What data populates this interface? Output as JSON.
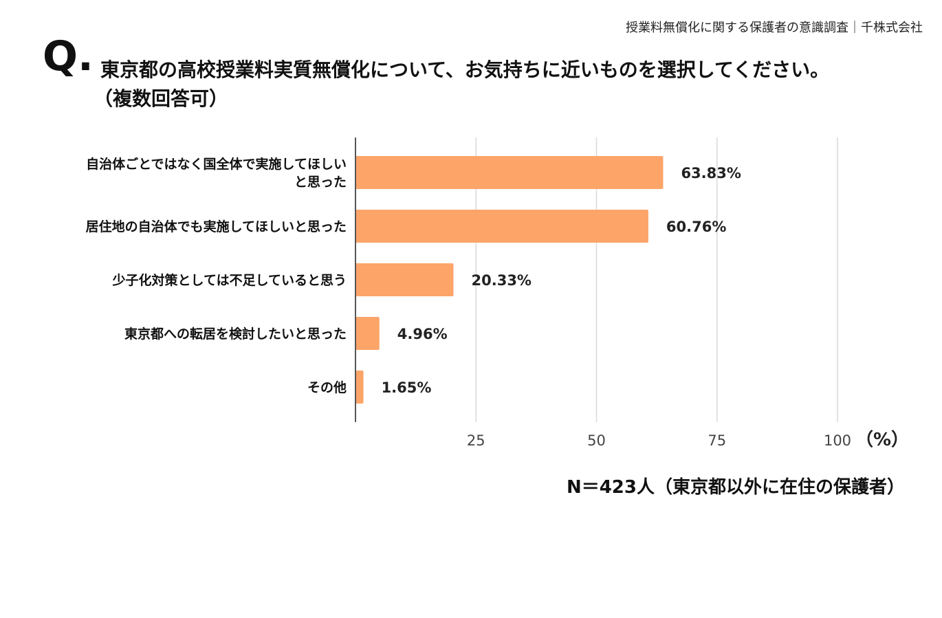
{
  "header": {
    "source": "授業料無償化に関する保護者の意識調査｜千株式会社"
  },
  "question": {
    "mark": "Q.",
    "line1": "東京都の高校授業料実質無償化について、お気持ちに近いものを選択してください。",
    "line2": "（複数回答可）"
  },
  "chart_data": {
    "type": "bar",
    "orientation": "horizontal",
    "categories": [
      [
        "自治体ごとではなく国全体で実施してほしい",
        "と思った"
      ],
      [
        "居住地の自治体でも実施してほしいと思った"
      ],
      [
        "少子化対策としては不足していると思う"
      ],
      [
        "東京都への転居を検討したいと思った"
      ],
      [
        "その他"
      ]
    ],
    "values": [
      63.83,
      60.76,
      20.33,
      4.96,
      1.65
    ],
    "value_labels": [
      "63.83%",
      "60.76%",
      "20.33%",
      "4.96%",
      "1.65%"
    ],
    "xlim": [
      0,
      100
    ],
    "xticks": [
      25,
      50,
      75,
      100
    ],
    "xunit": "（%）",
    "grid": true,
    "bar_color": "#FDA469",
    "axis_color": "#555555",
    "grid_color": "#d9d9d9"
  },
  "footer": {
    "sample": "N＝423人（東京都以外に在住の保護者）"
  }
}
